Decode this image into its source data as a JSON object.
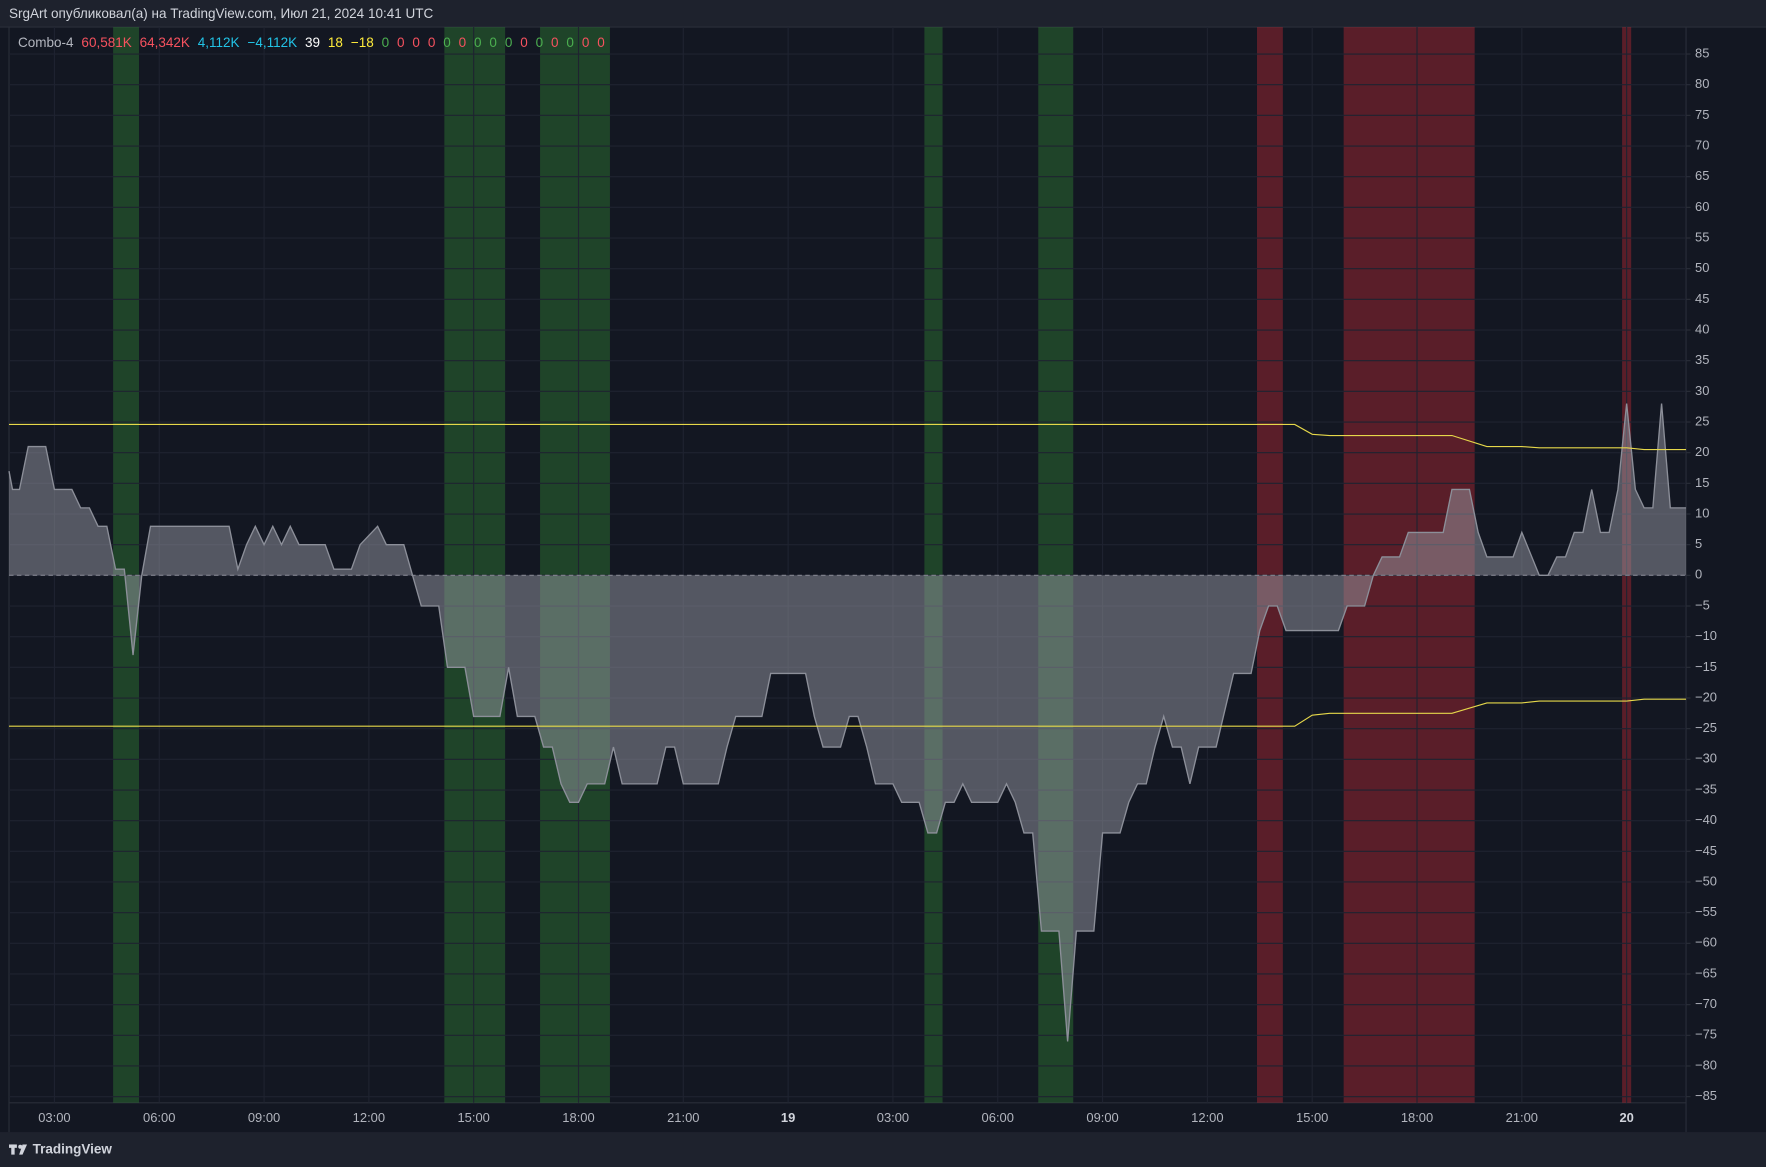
{
  "header": {
    "title": "SrgArt опубликовал(а) на TradingView.com, Июл 21, 2024 10:41 UTC"
  },
  "footer": {
    "brand": "TradingView"
  },
  "chart_data": {
    "type": "area",
    "indicator": "Combo-4",
    "legend_values": [
      {
        "text": "60,581K",
        "color": "#f7525f"
      },
      {
        "text": "64,342K",
        "color": "#f7525f"
      },
      {
        "text": "4,112K",
        "color": "#22c3e6"
      },
      {
        "text": "−4,112K",
        "color": "#22c3e6"
      },
      {
        "text": "39",
        "color": "#ffffff"
      },
      {
        "text": "18",
        "color": "#ffeb3b"
      },
      {
        "text": "−18",
        "color": "#ffeb3b"
      },
      {
        "text": "0",
        "color": "#4caf50"
      },
      {
        "text": "0",
        "color": "#f7525f"
      },
      {
        "text": "0",
        "color": "#f7525f"
      },
      {
        "text": "0",
        "color": "#f7525f"
      },
      {
        "text": "0",
        "color": "#4caf50"
      },
      {
        "text": "0",
        "color": "#f7525f"
      },
      {
        "text": "0",
        "color": "#4caf50"
      },
      {
        "text": "0",
        "color": "#4caf50"
      },
      {
        "text": "0",
        "color": "#4caf50"
      },
      {
        "text": "0",
        "color": "#f7525f"
      },
      {
        "text": "0",
        "color": "#4caf50"
      },
      {
        "text": "0",
        "color": "#f7525f"
      },
      {
        "text": "0",
        "color": "#4caf50"
      },
      {
        "text": "0",
        "color": "#f7525f"
      },
      {
        "text": "0",
        "color": "#f7525f"
      }
    ],
    "series": [
      {
        "kind": "area",
        "color": "#8c8f99",
        "x": [
          1.7,
          1.8,
          2,
          2.25,
          2.75,
          3,
          3.5,
          3.75,
          4,
          4.25,
          4.5,
          4.75,
          5,
          5.25,
          5.5,
          5.75,
          8,
          8.25,
          8.5,
          8.75,
          9,
          9.25,
          9.5,
          9.75,
          10,
          10.75,
          11,
          11.5,
          11.75,
          12.25,
          12.5,
          13,
          13.5,
          14,
          14.25,
          14.75,
          15,
          15.75,
          16,
          16.25,
          16.75,
          17,
          17.25,
          17.5,
          17.75,
          18,
          18.25,
          18.75,
          19,
          19.25,
          20.25,
          20.5,
          20.75,
          21,
          22,
          22.25,
          22.5,
          23.25,
          23.5,
          24.5,
          24.75,
          25,
          25.5,
          25.75,
          26,
          26.25,
          26.5,
          27,
          27.25,
          27.75,
          28,
          28.25,
          28.5,
          28.75,
          29,
          29.25,
          30,
          30.25,
          30.5,
          30.75,
          31,
          31.25,
          31.75,
          32,
          32.25,
          32.75,
          33,
          33.5,
          33.75,
          34,
          34.25,
          34.5,
          34.75,
          35,
          35.25,
          35.5,
          35.75,
          36.25,
          36.75,
          37.25,
          37.5,
          37.75,
          38,
          38.25,
          39.75,
          40,
          40.5,
          40.75,
          41,
          41.5,
          41.75,
          42.75,
          43,
          43.5,
          43.75,
          44,
          44.75,
          45,
          45.5,
          45.75,
          46,
          46.25,
          46.5,
          46.75,
          47,
          47.25,
          47.5,
          47.75,
          48,
          48.25,
          48.5,
          48.75,
          49,
          49.25,
          49.7
        ],
        "values": [
          17,
          14,
          14,
          21,
          21,
          14,
          14,
          11,
          11,
          8,
          8,
          1,
          1,
          -13,
          0,
          8,
          8,
          1,
          5,
          8,
          5,
          8,
          5,
          8,
          5,
          5,
          1,
          1,
          5,
          8,
          5,
          5,
          -5,
          -5,
          -15,
          -15,
          -23,
          -23,
          -15,
          -23,
          -23,
          -28,
          -28,
          -34,
          -37,
          -37,
          -34,
          -34,
          -28,
          -34,
          -34,
          -28,
          -28,
          -34,
          -34,
          -28,
          -23,
          -23,
          -16,
          -16,
          -23,
          -28,
          -28,
          -23,
          -23,
          -28,
          -34,
          -34,
          -37,
          -37,
          -42,
          -42,
          -37,
          -37,
          -34,
          -37,
          -37,
          -34,
          -37,
          -42,
          -42,
          -58,
          -58,
          -76,
          -58,
          -58,
          -42,
          -42,
          -37,
          -34,
          -34,
          -28,
          -23,
          -28,
          -28,
          -34,
          -28,
          -28,
          -16,
          -16,
          -9,
          -5,
          -5,
          -9,
          -9,
          -5,
          -5,
          0,
          3,
          3,
          7,
          7,
          14,
          14,
          7,
          3,
          3,
          7,
          0,
          0,
          3,
          3,
          7,
          7,
          14,
          7,
          7,
          14,
          28,
          14,
          11,
          11,
          28,
          11,
          11
        ]
      },
      {
        "kind": "line",
        "color": "#e6d84a",
        "x": [
          1.7,
          38.5,
          39.0,
          39.5,
          43.0,
          44.0,
          45.0,
          45.5,
          48.0,
          48.5,
          49.7
        ],
        "values": [
          24.6,
          24.6,
          23,
          22.8,
          22.8,
          21,
          21,
          20.8,
          20.8,
          20.5,
          20.5
        ]
      },
      {
        "kind": "line",
        "color": "#e6d84a",
        "x": [
          1.7,
          38.5,
          39.0,
          39.5,
          43.0,
          44.0,
          45.0,
          45.5,
          48.0,
          48.5,
          49.7
        ],
        "values": [
          -24.6,
          -24.6,
          -22.8,
          -22.5,
          -22.5,
          -20.8,
          -20.8,
          -20.5,
          -20.5,
          -20.2,
          -20.2
        ]
      }
    ],
    "shaded_ranges": [
      {
        "x": [
          4.68,
          5.42
        ],
        "color": "rgba(46,125,50,0.45)"
      },
      {
        "x": [
          14.16,
          15.9
        ],
        "color": "rgba(46,125,50,0.45)"
      },
      {
        "x": [
          16.9,
          18.9
        ],
        "color": "rgba(46,125,50,0.45)"
      },
      {
        "x": [
          27.9,
          28.42
        ],
        "color": "rgba(46,125,50,0.45)"
      },
      {
        "x": [
          31.16,
          32.16
        ],
        "color": "rgba(46,125,50,0.45)"
      },
      {
        "x": [
          37.42,
          38.16
        ],
        "color": "rgba(178,40,51,0.45)"
      },
      {
        "x": [
          39.9,
          43.65
        ],
        "color": "rgba(178,40,51,0.45)"
      },
      {
        "x": [
          47.87,
          48.13
        ],
        "color": "rgba(178,40,51,0.45)"
      }
    ],
    "xlim": [
      1.7,
      49.7
    ],
    "xticks": [
      {
        "value": 3,
        "label": "03:00"
      },
      {
        "value": 6,
        "label": "06:00"
      },
      {
        "value": 9,
        "label": "09:00"
      },
      {
        "value": 12,
        "label": "12:00"
      },
      {
        "value": 15,
        "label": "15:00"
      },
      {
        "value": 18,
        "label": "18:00"
      },
      {
        "value": 21,
        "label": "21:00"
      },
      {
        "value": 24,
        "label": "19"
      },
      {
        "value": 27,
        "label": "03:00"
      },
      {
        "value": 30,
        "label": "06:00"
      },
      {
        "value": 33,
        "label": "09:00"
      },
      {
        "value": 36,
        "label": "12:00"
      },
      {
        "value": 39,
        "label": "15:00"
      },
      {
        "value": 42,
        "label": "18:00"
      },
      {
        "value": 45,
        "label": "21:00"
      },
      {
        "value": 48,
        "label": "20"
      }
    ],
    "ylim": [
      -86,
      89.4
    ],
    "yticks": [
      85,
      80,
      75,
      70,
      65,
      60,
      55,
      50,
      45,
      40,
      35,
      30,
      25,
      20,
      15,
      10,
      5,
      0,
      {
        "value": -5,
        "label": "−5"
      },
      {
        "value": -10,
        "label": "−10"
      },
      {
        "value": -15,
        "label": "−15"
      },
      {
        "value": -20,
        "label": "−20"
      },
      {
        "value": -25,
        "label": "−25"
      },
      {
        "value": -30,
        "label": "−30"
      },
      {
        "value": -35,
        "label": "−35"
      },
      {
        "value": -40,
        "label": "−40"
      },
      {
        "value": -45,
        "label": "−45"
      },
      {
        "value": -50,
        "label": "−50"
      },
      {
        "value": -55,
        "label": "−55"
      },
      {
        "value": -60,
        "label": "−60"
      },
      {
        "value": -65,
        "label": "−65"
      },
      {
        "value": -70,
        "label": "−70"
      },
      {
        "value": -75,
        "label": "−75"
      },
      {
        "value": -80,
        "label": "−80"
      },
      {
        "value": -85,
        "label": "−85"
      }
    ],
    "grid": true
  }
}
